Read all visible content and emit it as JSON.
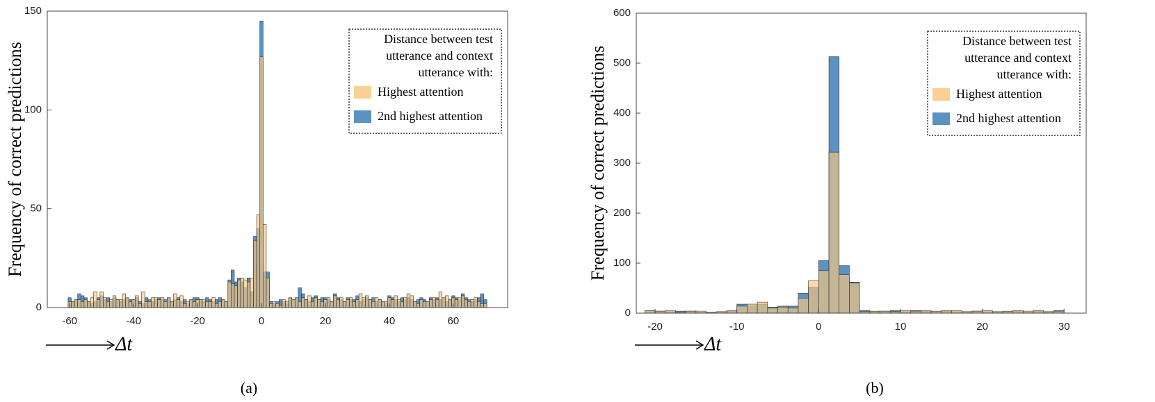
{
  "charts": [
    {
      "chart_data": {
        "type": "histogram",
        "ylabel": "Frequency of correct predictions",
        "xlabel": "Δt",
        "caption": "(a)",
        "legend_title": [
          "Distance between test",
          "utterance and context",
          "utterance with:"
        ],
        "legend_loc": "upper right",
        "bins": [
          -60.5,
          -59.5,
          -58.5,
          -57.5,
          -56.5,
          -55.5,
          -54.5,
          -53.5,
          -52.5,
          -51.5,
          -50.5,
          -49.5,
          -48.5,
          -47.5,
          -46.5,
          -45.5,
          -44.5,
          -43.5,
          -42.5,
          -41.5,
          -40.5,
          -39.5,
          -38.5,
          -37.5,
          -36.5,
          -35.5,
          -34.5,
          -33.5,
          -32.5,
          -31.5,
          -30.5,
          -29.5,
          -28.5,
          -27.5,
          -26.5,
          -25.5,
          -24.5,
          -23.5,
          -22.5,
          -21.5,
          -20.5,
          -19.5,
          -18.5,
          -17.5,
          -16.5,
          -15.5,
          -14.5,
          -13.5,
          -12.5,
          -11.5,
          -10.5,
          -9.5,
          -8.5,
          -7.5,
          -6.5,
          -5.5,
          -4.5,
          -3.5,
          -2.5,
          -1.5,
          -0.5,
          0.5,
          1.5,
          2.5,
          3.5,
          4.5,
          5.5,
          6.5,
          7.5,
          8.5,
          9.5,
          10.5,
          11.5,
          12.5,
          13.5,
          14.5,
          15.5,
          16.5,
          17.5,
          18.5,
          19.5,
          20.5,
          21.5,
          22.5,
          23.5,
          24.5,
          25.5,
          26.5,
          27.5,
          28.5,
          29.5,
          30.5,
          31.5,
          32.5,
          33.5,
          34.5,
          35.5,
          36.5,
          37.5,
          38.5,
          39.5,
          40.5,
          41.5,
          42.5,
          43.5,
          44.5,
          45.5,
          46.5,
          47.5,
          48.5,
          49.5,
          50.5,
          51.5,
          52.5,
          53.5,
          54.5,
          55.5,
          56.5,
          57.5,
          58.5,
          59.5,
          60.5,
          61.5,
          62.5,
          63.5,
          64.5,
          65.5,
          66.5,
          67.5,
          68.5,
          69.5,
          70.5
        ],
        "series": [
          {
            "name": "2nd highest attention",
            "color": "#3f7fb5",
            "values": [
              5,
              3,
              4,
              7,
              6,
              5,
              3,
              2,
              3,
              5,
              6,
              4,
              5,
              3,
              5,
              4,
              3,
              4,
              5,
              4,
              4,
              5,
              3,
              2,
              5,
              4,
              3,
              4,
              5,
              4,
              4,
              5,
              3,
              4,
              5,
              3,
              4,
              2,
              4,
              5,
              5,
              4,
              3,
              5,
              4,
              3,
              4,
              5,
              4,
              3,
              14,
              19,
              13,
              15,
              13,
              10,
              15,
              8,
              36,
              40,
              145,
              18,
              18,
              3,
              2,
              3,
              4,
              3,
              2,
              5,
              4,
              5,
              10,
              7,
              4,
              3,
              5,
              6,
              4,
              5,
              5,
              4,
              3,
              7,
              5,
              4,
              3,
              5,
              4,
              4,
              6,
              3,
              4,
              5,
              4,
              5,
              3,
              4,
              3,
              2,
              6,
              5,
              4,
              3,
              5,
              4,
              5,
              4,
              3,
              4,
              5,
              4,
              3,
              5,
              4,
              5,
              4,
              5,
              3,
              4,
              6,
              5,
              4,
              7,
              5,
              4,
              3,
              4,
              5,
              7,
              4
            ]
          },
          {
            "name": "Highest attention",
            "color": "#fbc77f",
            "values": [
              3,
              3,
              4,
              4,
              3,
              4,
              3,
              5,
              8,
              4,
              8,
              5,
              3,
              4,
              6,
              4,
              4,
              7,
              5,
              3,
              4,
              6,
              2,
              8,
              3,
              3,
              5,
              5,
              4,
              5,
              3,
              5,
              3,
              7,
              4,
              6,
              2,
              3,
              4,
              3,
              4,
              4,
              4,
              3,
              3,
              5,
              2,
              3,
              4,
              3,
              13,
              12,
              11,
              14,
              15,
              14,
              13,
              15,
              34,
              47,
              127,
              42,
              15,
              2,
              3,
              2,
              1,
              4,
              3,
              5,
              4,
              5,
              3,
              5,
              4,
              6,
              3,
              5,
              4,
              3,
              4,
              5,
              3,
              6,
              4,
              5,
              3,
              4,
              5,
              3,
              4,
              7,
              5,
              6,
              4,
              3,
              5,
              4,
              3,
              3,
              5,
              4,
              6,
              4,
              3,
              5,
              7,
              6,
              3,
              2,
              4,
              3,
              3,
              4,
              5,
              4,
              8,
              5,
              6,
              4,
              5,
              4,
              5,
              6,
              4,
              3,
              4,
              5,
              3,
              2,
              2
            ]
          }
        ],
        "xlim": [
          -67,
          77
        ],
        "xticks": [
          -60,
          -40,
          -20,
          0,
          20,
          40,
          60
        ],
        "ylim": [
          0,
          150
        ],
        "yticks": [
          0,
          50,
          100,
          150
        ]
      }
    },
    {
      "chart_data": {
        "type": "histogram",
        "ylabel": "Frequency of correct predictions",
        "xlabel": "Δt",
        "caption": "(b)",
        "legend_title": [
          "Distance between test",
          "utterance and context",
          "utterance with:"
        ],
        "legend_loc": "upper right",
        "bins": [
          -21.25,
          -20,
          -18.75,
          -17.5,
          -16.25,
          -15,
          -13.75,
          -12.5,
          -11.25,
          -10,
          -8.75,
          -7.5,
          -6.25,
          -5,
          -3.75,
          -2.5,
          -1.25,
          0,
          1.25,
          2.5,
          3.75,
          5,
          6.25,
          7.5,
          8.75,
          10,
          11.25,
          12.5,
          13.75,
          15,
          16.25,
          17.5,
          18.75,
          20,
          21.25,
          22.5,
          23.75,
          25,
          26.25,
          27.5,
          28.75,
          30
        ],
        "series": [
          {
            "name": "2nd highest attention",
            "color": "#3f7fb5",
            "values": [
              5,
              4,
              3,
              4,
              4,
              2,
              1,
              2,
              4,
              18,
              15,
              18,
              12,
              14,
              14,
              40,
              52,
              105,
              513,
              95,
              62,
              5,
              3,
              4,
              5,
              3,
              5,
              4,
              3,
              4,
              3,
              2,
              4,
              3,
              2,
              3,
              4,
              2,
              4,
              2,
              5
            ]
          },
          {
            "name": "Highest attention",
            "color": "#fbc77f",
            "values": [
              5,
              4,
              5,
              2,
              4,
              4,
              2,
              3,
              5,
              14,
              18,
              22,
              10,
              12,
              10,
              30,
              65,
              85,
              322,
              77,
              60,
              3,
              4,
              4,
              3,
              5,
              4,
              5,
              4,
              5,
              5,
              3,
              4,
              5,
              3,
              4,
              5,
              4,
              5,
              3,
              4
            ]
          }
        ],
        "xlim": [
          -22.3,
          32.7
        ],
        "xticks": [
          -20,
          -10,
          0,
          10,
          20,
          30
        ],
        "ylim": [
          0,
          600
        ],
        "yticks": [
          0,
          100,
          200,
          300,
          400,
          500,
          600
        ]
      }
    }
  ]
}
